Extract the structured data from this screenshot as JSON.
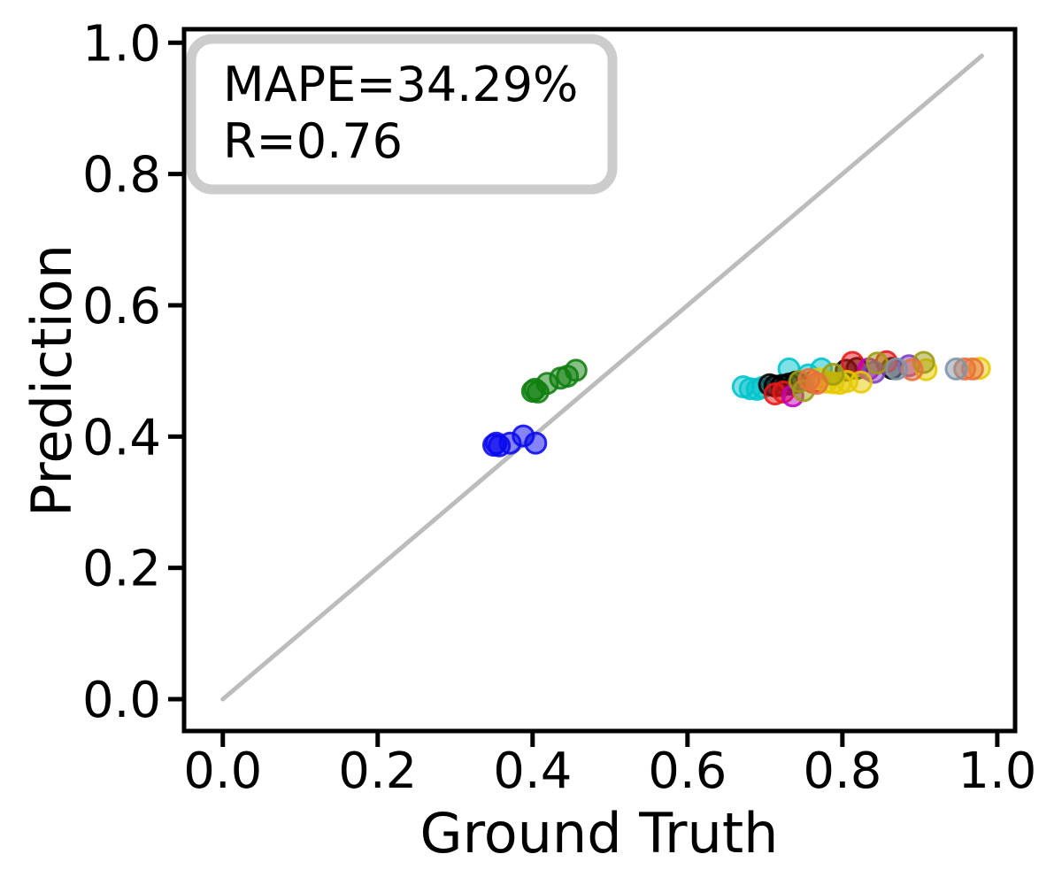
{
  "figure": {
    "background": "#ffffff",
    "stats": {
      "mape_percent": 34.29,
      "r": 0.76
    }
  },
  "chart_data": {
    "type": "scatter",
    "title": "",
    "xlabel": "Ground Truth",
    "ylabel": "Prediction",
    "xlim": [
      -0.05,
      1.023
    ],
    "ylim": [
      -0.0485,
      1.0206
    ],
    "x_ticks": [
      0.0,
      0.2,
      0.4,
      0.6,
      0.8,
      1.0
    ],
    "x_tick_labels": [
      "0.0",
      "0.2",
      "0.4",
      "0.6",
      "0.8",
      "1.0"
    ],
    "y_ticks": [
      0.0,
      0.2,
      0.4,
      0.6,
      0.8,
      1.0
    ],
    "y_tick_labels": [
      "0.0",
      "0.2",
      "0.4",
      "0.6",
      "0.8",
      "1.0"
    ],
    "grid": false,
    "legend": null,
    "annotation": {
      "line1": "MAPE=34.29%",
      "line2": "R=0.76"
    },
    "identity_line": {
      "x0": 0.0,
      "y0": 0.0,
      "x1": 0.98,
      "y1": 0.98,
      "color": "#bcbcbc"
    },
    "marker": {
      "radius": 11.5,
      "fill_opacity": 0.5,
      "stroke_opacity": 0.88,
      "stroke_width": 3
    },
    "series": [
      {
        "name": "blue",
        "color": "#0a0aee",
        "points": [
          [
            0.35,
            0.387
          ],
          [
            0.353,
            0.39
          ],
          [
            0.357,
            0.386
          ],
          [
            0.371,
            0.39
          ],
          [
            0.388,
            0.401
          ],
          [
            0.404,
            0.39
          ]
        ]
      },
      {
        "name": "green",
        "color": "#0f800f",
        "points": [
          [
            0.4,
            0.469
          ],
          [
            0.403,
            0.472
          ],
          [
            0.407,
            0.468
          ],
          [
            0.419,
            0.481
          ],
          [
            0.436,
            0.489
          ],
          [
            0.445,
            0.492
          ],
          [
            0.456,
            0.501
          ]
        ]
      },
      {
        "name": "cyan",
        "color": "#00c4cc",
        "points": [
          [
            0.672,
            0.476
          ],
          [
            0.681,
            0.473
          ],
          [
            0.69,
            0.472
          ],
          [
            0.697,
            0.475
          ],
          [
            0.731,
            0.503
          ],
          [
            0.756,
            0.494
          ],
          [
            0.773,
            0.503
          ]
        ]
      },
      {
        "name": "black",
        "color": "#000000",
        "points": [
          [
            0.706,
            0.479
          ],
          [
            0.713,
            0.477
          ],
          [
            0.722,
            0.478
          ],
          [
            0.731,
            0.48
          ],
          [
            0.74,
            0.483
          ],
          [
            0.805,
            0.501
          ],
          [
            0.819,
            0.504
          ],
          [
            0.864,
            0.504
          ]
        ]
      },
      {
        "name": "red",
        "color": "#e81818",
        "points": [
          [
            0.713,
            0.465
          ],
          [
            0.724,
            0.468
          ],
          [
            0.762,
            0.483
          ],
          [
            0.813,
            0.513
          ],
          [
            0.857,
            0.514
          ]
        ]
      },
      {
        "name": "magenta",
        "color": "#c000c0",
        "points": [
          [
            0.736,
            0.462
          ],
          [
            0.834,
            0.503
          ]
        ]
      },
      {
        "name": "purple",
        "color": "#7d3fc0",
        "points": [
          [
            0.841,
            0.498
          ],
          [
            0.886,
            0.508
          ]
        ]
      },
      {
        "name": "yellow",
        "color": "#e5c900",
        "points": [
          [
            0.77,
            0.488
          ],
          [
            0.779,
            0.483
          ],
          [
            0.788,
            0.482
          ],
          [
            0.797,
            0.481
          ],
          [
            0.806,
            0.484
          ],
          [
            0.824,
            0.483
          ],
          [
            0.908,
            0.502
          ],
          [
            0.977,
            0.504
          ]
        ]
      },
      {
        "name": "olive",
        "color": "#9c9c10",
        "points": [
          [
            0.745,
            0.484
          ],
          [
            0.75,
            0.47
          ],
          [
            0.788,
            0.495
          ],
          [
            0.845,
            0.512
          ],
          [
            0.905,
            0.513
          ]
        ]
      },
      {
        "name": "orange",
        "color": "#e8703d",
        "points": [
          [
            0.757,
            0.487
          ],
          [
            0.767,
            0.481
          ],
          [
            0.89,
            0.502
          ],
          [
            0.958,
            0.503
          ],
          [
            0.968,
            0.503
          ]
        ]
      },
      {
        "name": "gray-blue",
        "color": "#7d95a8",
        "points": [
          [
            0.87,
            0.503
          ],
          [
            0.947,
            0.503
          ]
        ]
      }
    ]
  }
}
